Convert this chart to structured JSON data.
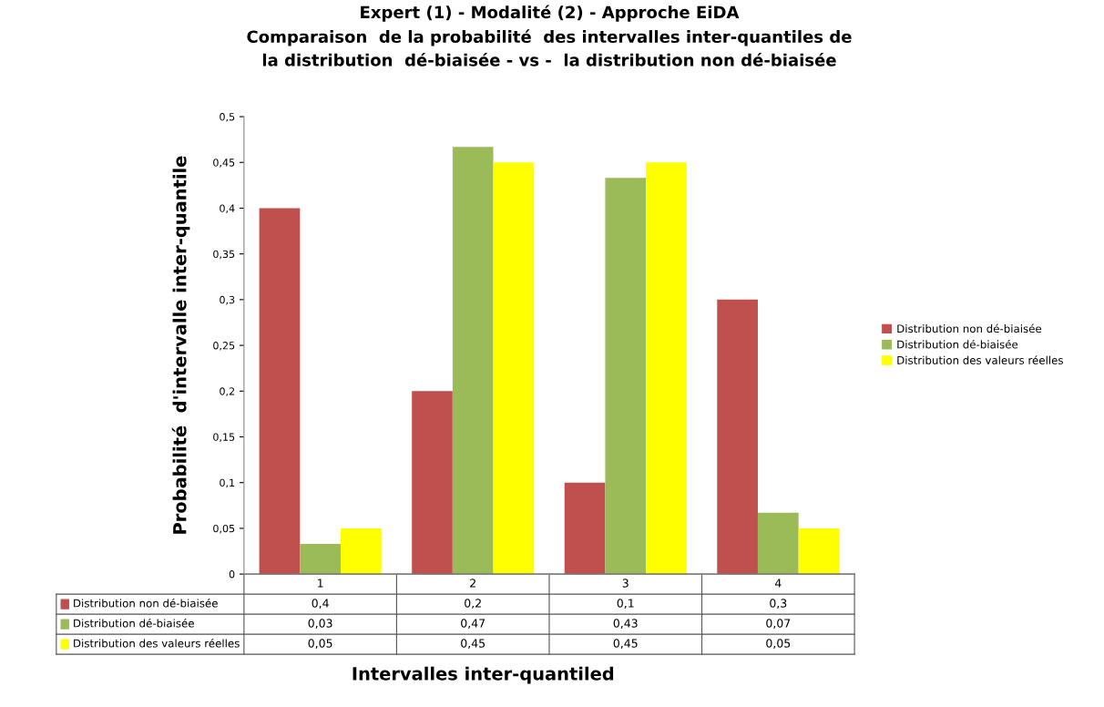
{
  "chart_data": {
    "type": "bar",
    "title": "Expert (1) - Modalité (2) - Approche EiDA\nComparaison  de la probabilité  des intervalles inter-quantiles de\nla distribution  dé-biaisée - vs -  la distribution non dé-biaisée",
    "xlabel": "Intervalles inter-quantiled",
    "ylabel": "Probabilité  d'intervalle inter-quantile",
    "categories": [
      "1",
      "2",
      "3",
      "4"
    ],
    "series": [
      {
        "name": "Distribution non dé-biaisée",
        "color": "#c0504d",
        "values": [
          0.4,
          0.2,
          0.1,
          0.3
        ],
        "value_labels": [
          "0,4",
          "0,2",
          "0,1",
          "0,3"
        ]
      },
      {
        "name": "Distribution dé-biaisée",
        "color": "#9bbb59",
        "values": [
          0.033,
          0.467,
          0.433,
          0.067
        ],
        "value_labels": [
          "0,03",
          "0,47",
          "0,43",
          "0,07"
        ]
      },
      {
        "name": "Distribution des valeurs réelles",
        "color": "#ffff00",
        "values": [
          0.05,
          0.45,
          0.45,
          0.05
        ],
        "value_labels": [
          "0,05",
          "0,45",
          "0,45",
          "0,05"
        ]
      }
    ],
    "ylim": [
      0,
      0.5
    ],
    "yticks": [
      0,
      {
        "value": 0.05,
        "label": "0,05"
      },
      {
        "value": 0.1,
        "label": "0,1"
      },
      {
        "value": 0.15,
        "label": "0,15"
      },
      {
        "value": 0.2,
        "label": "0,2"
      },
      {
        "value": 0.25,
        "label": "0,25"
      },
      {
        "value": 0.3,
        "label": "0,3"
      },
      {
        "value": 0.35,
        "label": "0,35"
      },
      {
        "value": 0.4,
        "label": "0,4"
      },
      {
        "value": 0.45,
        "label": "0,45"
      },
      {
        "value": 0.5,
        "label": "0,5"
      }
    ],
    "grid": false,
    "legend": "right"
  }
}
